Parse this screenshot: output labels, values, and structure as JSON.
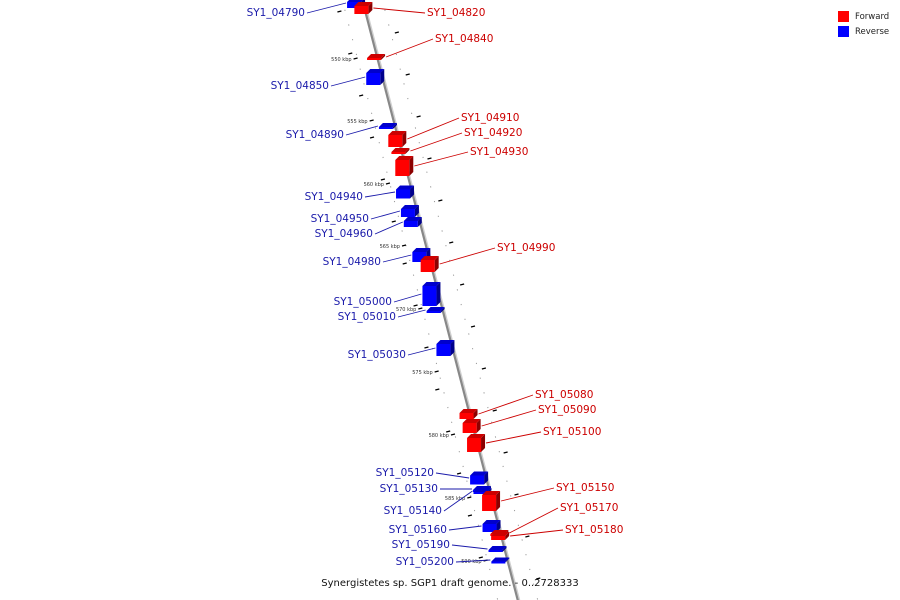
{
  "legend": {
    "forward_label": "Forward",
    "reverse_label": "Reverse",
    "forward_color": "#ff0000",
    "reverse_color": "#0000ff"
  },
  "caption": "Synergistetes sp. SGP1 draft genome. - 0..2728333",
  "colors": {
    "backbone": "#888888",
    "forward_label": "#cc0000",
    "reverse_label": "#1a1aaa",
    "tick": "#000000"
  },
  "scale": {
    "unit": "kbp",
    "labeled_ticks_kbp": [
      550,
      555,
      560,
      565,
      570,
      575,
      580,
      585,
      590
    ]
  },
  "genes": [
    {
      "id": "SY1_04790",
      "strand": "reverse"
    },
    {
      "id": "SY1_04820",
      "strand": "forward"
    },
    {
      "id": "SY1_04840",
      "strand": "forward"
    },
    {
      "id": "SY1_04850",
      "strand": "reverse"
    },
    {
      "id": "SY1_04890",
      "strand": "reverse"
    },
    {
      "id": "SY1_04910",
      "strand": "forward"
    },
    {
      "id": "SY1_04920",
      "strand": "forward"
    },
    {
      "id": "SY1_04930",
      "strand": "forward"
    },
    {
      "id": "SY1_04940",
      "strand": "reverse"
    },
    {
      "id": "SY1_04950",
      "strand": "reverse"
    },
    {
      "id": "SY1_04960",
      "strand": "reverse"
    },
    {
      "id": "SY1_04980",
      "strand": "reverse"
    },
    {
      "id": "SY1_04990",
      "strand": "forward"
    },
    {
      "id": "SY1_05000",
      "strand": "reverse"
    },
    {
      "id": "SY1_05010",
      "strand": "reverse"
    },
    {
      "id": "SY1_05030",
      "strand": "reverse"
    },
    {
      "id": "SY1_05080",
      "strand": "forward"
    },
    {
      "id": "SY1_05090",
      "strand": "forward"
    },
    {
      "id": "SY1_05100",
      "strand": "forward"
    },
    {
      "id": "SY1_05120",
      "strand": "reverse"
    },
    {
      "id": "SY1_05130",
      "strand": "reverse"
    },
    {
      "id": "SY1_05140",
      "strand": "reverse"
    },
    {
      "id": "SY1_05150",
      "strand": "forward"
    },
    {
      "id": "SY1_05160",
      "strand": "reverse"
    },
    {
      "id": "SY1_05170",
      "strand": "forward"
    },
    {
      "id": "SY1_05180",
      "strand": "forward"
    },
    {
      "id": "SY1_05190",
      "strand": "reverse"
    },
    {
      "id": "SY1_05200",
      "strand": "reverse"
    }
  ]
}
